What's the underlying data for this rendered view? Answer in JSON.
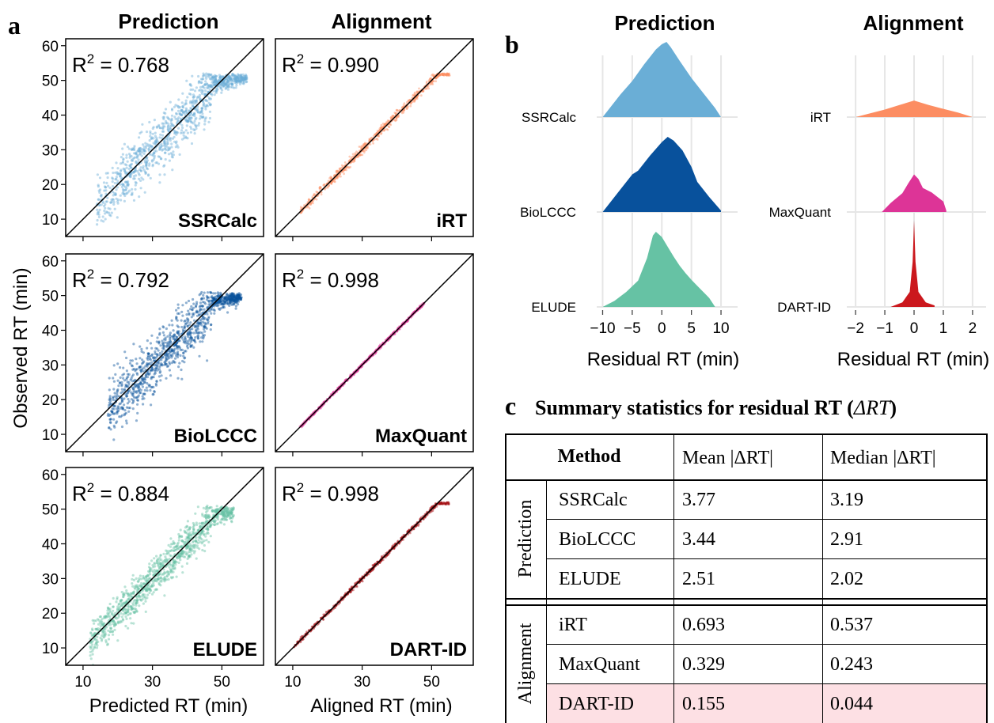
{
  "panel_labels": {
    "a": "a",
    "b": "b",
    "c": "c"
  },
  "panel_a": {
    "column_titles": [
      "Prediction",
      "Alignment"
    ],
    "ylabel": "Observed RT (min)",
    "xlabels": [
      "Predicted RT (min)",
      "Aligned RT (min)"
    ],
    "x_ticks": [
      "10",
      "30",
      "50"
    ],
    "y_ticks": [
      "10",
      "20",
      "30",
      "40",
      "50",
      "60"
    ],
    "panels": [
      {
        "method": "SSRCalc",
        "r2_prefix": "R",
        "r2_sup": "2",
        "r2_value": " = 0.768",
        "color": "#6aaed6"
      },
      {
        "method": "iRT",
        "r2_prefix": "R",
        "r2_sup": "2",
        "r2_value": " = 0.990",
        "color": "#fc8d62"
      },
      {
        "method": "BioLCCC",
        "r2_prefix": "R",
        "r2_sup": "2",
        "r2_value": " = 0.792",
        "color": "#08519c"
      },
      {
        "method": "MaxQuant",
        "r2_prefix": "R",
        "r2_sup": "2",
        "r2_value": " = 0.998",
        "color": "#dd3497"
      },
      {
        "method": "ELUDE",
        "r2_prefix": "R",
        "r2_sup": "2",
        "r2_value": " = 0.884",
        "color": "#66c2a4"
      },
      {
        "method": "DART-ID",
        "r2_prefix": "R",
        "r2_sup": "2",
        "r2_value": " = 0.998",
        "color": "#a50f15"
      }
    ]
  },
  "chart_data": [
    {
      "type": "scatter",
      "panel": "a",
      "xlim": [
        5,
        62
      ],
      "ylim": [
        5,
        62
      ],
      "x_ticks": [
        10,
        30,
        50
      ],
      "y_ticks": [
        10,
        20,
        30,
        40,
        50,
        60
      ],
      "series": [
        {
          "name": "SSRCalc",
          "r2": 0.768,
          "x_range": [
            14,
            62
          ],
          "plateau_y": 52
        },
        {
          "name": "BioLCCC",
          "r2": 0.792,
          "x_range": [
            17,
            60
          ],
          "plateau_y": 51
        },
        {
          "name": "ELUDE",
          "r2": 0.884,
          "x_range": [
            12,
            58
          ],
          "plateau_y": 51
        },
        {
          "name": "iRT",
          "r2": 0.99,
          "x_range": [
            12,
            60
          ],
          "plateau_y": 52
        },
        {
          "name": "MaxQuant",
          "r2": 0.998,
          "x_range": [
            12,
            52
          ],
          "plateau_y": 52
        },
        {
          "name": "DART-ID",
          "r2": 0.998,
          "x_range": [
            10,
            60
          ],
          "plateau_y": 52
        }
      ]
    },
    {
      "type": "area",
      "panel": "b",
      "groups": [
        {
          "title": "Prediction",
          "xlabel": "Residual RT (min)",
          "ticks": [
            "−10",
            "−5",
            "0",
            "5",
            "10"
          ],
          "xlim": [
            -11,
            12
          ],
          "series": [
            {
              "name": "SSRCalc",
              "color": "#6aaed6",
              "xrange": [
                -10,
                10
              ],
              "peak": 1
            },
            {
              "name": "BioLCCC",
              "color": "#08519c",
              "xrange": [
                -10,
                10
              ],
              "peak": 1
            },
            {
              "name": "ELUDE",
              "color": "#66c2a4",
              "xrange": [
                -10,
                9
              ],
              "peak": -1
            }
          ]
        },
        {
          "title": "Alignment",
          "xlabel": "Residual RT (min)",
          "ticks": [
            "−2",
            "−1",
            "0",
            "1",
            "2"
          ],
          "xlim": [
            -2.3,
            2.3
          ],
          "series": [
            {
              "name": "iRT",
              "color": "#fc8d62",
              "xrange": [
                -2,
                2
              ],
              "peak": 0
            },
            {
              "name": "MaxQuant",
              "color": "#dd3497",
              "xrange": [
                -1,
                1.1
              ],
              "peak": 0
            },
            {
              "name": "DART-ID",
              "color": "#cb181d",
              "xrange": [
                -0.8,
                0.7
              ],
              "peak": 0
            }
          ]
        }
      ]
    },
    {
      "type": "table",
      "panel": "c",
      "title_prefix": "Summary statistics for residual RT (",
      "title_symbol": "ΔRT",
      "title_suffix": ")",
      "headers": [
        "Method",
        "Mean |ΔRT|",
        "Median |ΔRT|"
      ],
      "groups": [
        {
          "label": "Prediction",
          "rows": [
            {
              "method": "SSRCalc",
              "mean": "3.77",
              "median": "3.19"
            },
            {
              "method": "BioLCCC",
              "mean": "3.44",
              "median": "2.91"
            },
            {
              "method": "ELUDE",
              "mean": "2.51",
              "median": "2.02"
            }
          ]
        },
        {
          "label": "Alignment",
          "rows": [
            {
              "method": "iRT",
              "mean": "0.693",
              "median": "0.537"
            },
            {
              "method": "MaxQuant",
              "mean": "0.329",
              "median": "0.243"
            },
            {
              "method": "DART-ID",
              "mean": "0.155",
              "median": "0.044",
              "highlight": "#fde0e4"
            }
          ]
        }
      ]
    }
  ]
}
